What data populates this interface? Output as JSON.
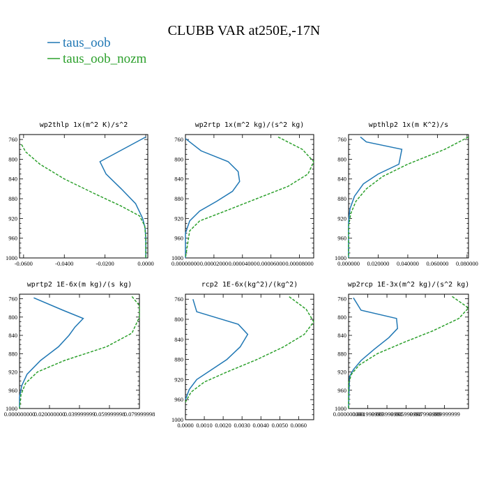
{
  "suptitle": "CLUBB VAR at250E,-17N",
  "legend": [
    {
      "label": "taus_oob",
      "color": "#1f77b4",
      "dash": "solid"
    },
    {
      "label": "taus_oob_nozm",
      "color": "#2ca02c",
      "dash": "dashed"
    }
  ],
  "chart_data": [
    {
      "type": "line",
      "title": "wp2thlp  1x(m^2 K)/s^2",
      "ylim": [
        1000,
        750
      ],
      "xlim": [
        -0.062,
        0.001
      ],
      "yticks": [
        760,
        800,
        840,
        880,
        920,
        960,
        1000
      ],
      "xticks": [
        -0.06,
        -0.04,
        -0.02,
        0.0
      ],
      "xtick_labels": [
        "-0.0600",
        "-0.0400",
        "-0.0200",
        "0.0000"
      ],
      "series": [
        {
          "name": "taus_oob",
          "color": "#1f77b4",
          "dash": "solid",
          "x": [
            0.0,
            -0.0225,
            -0.0195,
            -0.012,
            -0.005,
            -0.0015,
            -0.0003,
            0.0,
            0.0,
            0.0
          ],
          "y": [
            755,
            805,
            830,
            860,
            890,
            920,
            940,
            960,
            980,
            1000
          ]
        },
        {
          "name": "taus_oob_nozm",
          "color": "#2ca02c",
          "dash": "dashed",
          "x": [
            -0.061,
            -0.059,
            -0.052,
            -0.04,
            -0.025,
            -0.012,
            -0.003,
            -0.0005,
            0.0,
            0.0
          ],
          "y": [
            770,
            785,
            810,
            840,
            870,
            895,
            915,
            935,
            960,
            1000
          ]
        }
      ]
    },
    {
      "type": "line",
      "title": "wp2rtp  1x(m^2 kg)/(s^2 kg)",
      "ylim": [
        1000,
        750
      ],
      "xlim": [
        0.0,
        9e-05
      ],
      "yticks": [
        760,
        800,
        840,
        880,
        920,
        960,
        1000
      ],
      "xticks": [
        0.0,
        2e-05,
        4e-05,
        6e-05,
        8e-05
      ],
      "xtick_labels": [
        "0.00000000",
        "0.00002000",
        "0.00004000",
        "0.00006000",
        "0.00008000"
      ],
      "series": [
        {
          "name": "taus_oob",
          "color": "#1f77b4",
          "dash": "solid",
          "x": [
            0.0,
            3e-06,
            1.1e-05,
            3e-05,
            3.7e-05,
            3.8e-05,
            3.3e-05,
            2.2e-05,
            1e-05,
            3e-06,
            0.0,
            0.0
          ],
          "y": [
            758,
            765,
            783,
            805,
            825,
            845,
            865,
            885,
            905,
            925,
            950,
            1000
          ]
        },
        {
          "name": "taus_oob_nozm",
          "color": "#2ca02c",
          "dash": "dashed",
          "x": [
            6.5e-05,
            8.2e-05,
            9e-05,
            8.6e-05,
            7.2e-05,
            5e-05,
            2.8e-05,
            1e-05,
            3e-06,
            0.0
          ],
          "y": [
            755,
            780,
            805,
            830,
            855,
            880,
            905,
            925,
            945,
            1000
          ]
        }
      ]
    },
    {
      "type": "line",
      "title": "wpthlp2  1x(m K^2)/s",
      "ylim": [
        1000,
        750
      ],
      "xlim": [
        0.0,
        0.081
      ],
      "yticks": [
        760,
        800,
        840,
        880,
        920,
        960,
        1000
      ],
      "xticks": [
        0.0,
        0.02,
        0.04,
        0.06,
        0.08
      ],
      "xtick_labels": [
        "0.000000",
        "0.020000",
        "0.040000",
        "0.060000",
        "0.080000"
      ],
      "series": [
        {
          "name": "taus_oob",
          "color": "#1f77b4",
          "dash": "solid",
          "x": [
            0.008,
            0.012,
            0.036,
            0.034,
            0.02,
            0.01,
            0.004,
            0.001,
            0.0,
            0.0
          ],
          "y": [
            755,
            765,
            780,
            810,
            830,
            850,
            875,
            900,
            925,
            1000
          ]
        },
        {
          "name": "taus_oob_nozm",
          "color": "#2ca02c",
          "dash": "dashed",
          "x": [
            0.081,
            0.065,
            0.04,
            0.023,
            0.012,
            0.005,
            0.0015,
            0.0,
            0.0
          ],
          "y": [
            755,
            780,
            810,
            835,
            860,
            885,
            910,
            935,
            1000
          ]
        }
      ]
    },
    {
      "type": "line",
      "title": "wprtp2  1E-6x(m kg)/(s kg)",
      "ylim": [
        1000,
        750
      ],
      "xlim": [
        0.0,
        0.08
      ],
      "yticks": [
        760,
        800,
        840,
        880,
        920,
        960,
        1000
      ],
      "xticks": [
        0.0,
        0.02,
        0.04,
        0.06,
        0.08
      ],
      "xtick_labels": [
        "0.000000000",
        "0.020000000",
        "0.039999999",
        "0.059999998",
        "0.079999998"
      ],
      "series": [
        {
          "name": "taus_oob",
          "color": "#1f77b4",
          "dash": "solid",
          "x": [
            0.0095,
            0.029,
            0.0425,
            0.037,
            0.033,
            0.026,
            0.014,
            0.005,
            0.0015,
            0.0,
            0.0
          ],
          "y": [
            758,
            785,
            803,
            822,
            840,
            865,
            895,
            925,
            950,
            975,
            1000
          ]
        },
        {
          "name": "taus_oob_nozm",
          "color": "#2ca02c",
          "dash": "dashed",
          "x": [
            0.075,
            0.08,
            0.08,
            0.075,
            0.058,
            0.03,
            0.012,
            0.004,
            0.001,
            0.0
          ],
          "y": [
            755,
            775,
            800,
            835,
            865,
            895,
            920,
            945,
            970,
            1000
          ]
        }
      ]
    },
    {
      "type": "line",
      "title": "rcp2  1E-6x(kg^2)/(kg^2)",
      "ylim": [
        1000,
        750
      ],
      "xlim": [
        0.0,
        0.0068
      ],
      "yticks": [
        760,
        800,
        840,
        880,
        920,
        960,
        1000
      ],
      "xticks": [
        0.0,
        0.001,
        0.002,
        0.003,
        0.004,
        0.005,
        0.006
      ],
      "xtick_labels": [
        "0.0000",
        "0.0010",
        "0.0020",
        "0.0030",
        "0.0040",
        "0.0050",
        "0.0060"
      ],
      "series": [
        {
          "name": "taus_oob",
          "color": "#1f77b4",
          "dash": "solid",
          "x": [
            0.0004,
            0.0006,
            0.0028,
            0.0033,
            0.0029,
            0.0022,
            0.0014,
            0.0006,
            0.0002,
            0.0
          ],
          "y": [
            760,
            785,
            810,
            830,
            855,
            880,
            900,
            920,
            940,
            960
          ]
        },
        {
          "name": "taus_oob_nozm",
          "color": "#2ca02c",
          "dash": "dashed",
          "x": [
            0.0055,
            0.0064,
            0.0068,
            0.0063,
            0.0052,
            0.0038,
            0.0022,
            0.001,
            0.0003,
            0.0
          ],
          "y": [
            755,
            780,
            805,
            830,
            855,
            880,
            905,
            925,
            945,
            965
          ]
        }
      ]
    },
    {
      "type": "line",
      "title": "wp2rcp  1E-3x(m^2 kg)/(s^2 kg)",
      "ylim": [
        1000,
        750
      ],
      "xlim": [
        0.0,
        0.0125
      ],
      "yticks": [
        760,
        800,
        840,
        880,
        920,
        960,
        1000
      ],
      "xticks": [
        0.0,
        0.002,
        0.004,
        0.006,
        0.008,
        0.01
      ],
      "xtick_labels": [
        "0.000000000",
        "0.001999999",
        "0.003999998",
        "0.005999998",
        "0.007999999",
        "0.009999999"
      ],
      "series": [
        {
          "name": "taus_oob",
          "color": "#1f77b4",
          "dash": "solid",
          "x": [
            0.0005,
            0.0013,
            0.005,
            0.0051,
            0.0042,
            0.0027,
            0.0013,
            0.0005,
            0.0001,
            0.0
          ],
          "y": [
            758,
            785,
            803,
            825,
            845,
            870,
            895,
            915,
            930,
            1000
          ]
        },
        {
          "name": "taus_oob_nozm",
          "color": "#2ca02c",
          "dash": "dashed",
          "x": [
            0.0108,
            0.0125,
            0.0115,
            0.0088,
            0.0058,
            0.003,
            0.0011,
            0.0003,
            0.0,
            0.0
          ],
          "y": [
            755,
            780,
            803,
            830,
            855,
            880,
            905,
            925,
            945,
            1000
          ]
        }
      ]
    }
  ]
}
